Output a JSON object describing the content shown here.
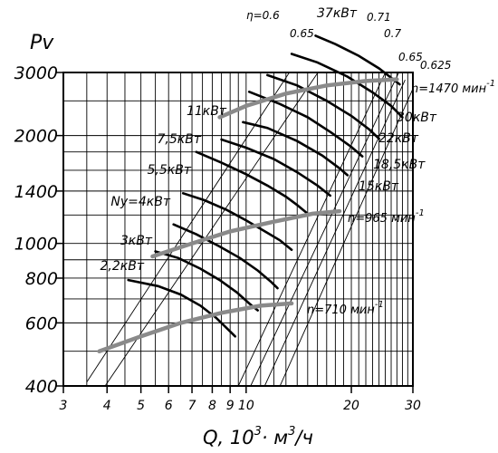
{
  "chart_data": {
    "type": "line",
    "title": "",
    "ylabel": "Pv",
    "xlabel_text": "Q, 10",
    "xlabel_exp1": "3",
    "xlabel_unit": "· м",
    "xlabel_exp2": "3",
    "xlabel_tail": "/ч",
    "x_scale": "log",
    "y_scale": "log",
    "xlim": [
      3,
      30
    ],
    "ylim": [
      400,
      3000
    ],
    "grid": true,
    "x_ticks": [
      3,
      4,
      5,
      6,
      7,
      8,
      9,
      10,
      20,
      30
    ],
    "x_grid": [
      3,
      3.5,
      4,
      4.5,
      5,
      5.5,
      6,
      6.5,
      7,
      7.5,
      8,
      8.5,
      9,
      9.5,
      10,
      11,
      12,
      13,
      14,
      15,
      16,
      17,
      18,
      19,
      20,
      21,
      22,
      23,
      24,
      25,
      26,
      27,
      28,
      29,
      30
    ],
    "y_ticks": [
      400,
      600,
      800,
      1000,
      1400,
      2000,
      3000
    ],
    "y_grid": [
      400,
      500,
      600,
      700,
      800,
      900,
      1000,
      1200,
      1400,
      1600,
      1800,
      2000,
      2500,
      3000
    ],
    "speed_curves": [
      {
        "label": "n=1470 мин",
        "label_exp": "-1",
        "points": [
          [
            8.4,
            2250
          ],
          [
            10,
            2420
          ],
          [
            13,
            2620
          ],
          [
            17,
            2760
          ],
          [
            22,
            2840
          ],
          [
            27,
            2870
          ]
        ]
      },
      {
        "label": "n=965 мин",
        "label_exp": "-1",
        "points": [
          [
            5.4,
            920
          ],
          [
            7,
            1000
          ],
          [
            9,
            1080
          ],
          [
            12,
            1150
          ],
          [
            15.5,
            1210
          ],
          [
            18.5,
            1230
          ]
        ]
      },
      {
        "label": "n=710 мин",
        "label_exp": "-1",
        "points": [
          [
            3.8,
            500
          ],
          [
            5,
            550
          ],
          [
            6.5,
            600
          ],
          [
            8.5,
            640
          ],
          [
            11,
            670
          ],
          [
            13.5,
            680
          ]
        ]
      }
    ],
    "power_curves": [
      {
        "label": "37кВт",
        "points": [
          [
            15.8,
            3800
          ],
          [
            18,
            3600
          ],
          [
            21,
            3340
          ],
          [
            24,
            3080
          ],
          [
            27.5,
            2780
          ]
        ]
      },
      {
        "label": "30кВт",
        "points": [
          [
            13.5,
            3380
          ],
          [
            16,
            3200
          ],
          [
            19.5,
            2920
          ],
          [
            23,
            2640
          ],
          [
            26,
            2420
          ],
          [
            28,
            2250
          ]
        ]
      },
      {
        "label": "22кВт",
        "points": [
          [
            11.5,
            2950
          ],
          [
            14,
            2760
          ],
          [
            17,
            2500
          ],
          [
            20,
            2270
          ],
          [
            22.5,
            2080
          ],
          [
            24,
            1960
          ]
        ]
      },
      {
        "label": "18,5кВт",
        "points": [
          [
            10.2,
            2650
          ],
          [
            12.5,
            2450
          ],
          [
            15,
            2250
          ],
          [
            17.5,
            2040
          ],
          [
            20,
            1860
          ],
          [
            21.5,
            1750
          ]
        ]
      },
      {
        "label": "15кВт",
        "points": [
          [
            9.8,
            2180
          ],
          [
            11.5,
            2100
          ],
          [
            14,
            1930
          ],
          [
            16.5,
            1760
          ],
          [
            18.5,
            1620
          ],
          [
            19.5,
            1550
          ]
        ]
      },
      {
        "label": "11кВт",
        "points": [
          [
            8.5,
            1950
          ],
          [
            10,
            1850
          ],
          [
            12,
            1720
          ],
          [
            14,
            1580
          ],
          [
            16,
            1450
          ],
          [
            17.4,
            1360
          ]
        ]
      },
      {
        "label": "7,5кВт",
        "points": [
          [
            7.2,
            1800
          ],
          [
            8.5,
            1680
          ],
          [
            10,
            1560
          ],
          [
            11.5,
            1450
          ],
          [
            13,
            1350
          ],
          [
            14,
            1280
          ],
          [
            15,
            1210
          ]
        ]
      },
      {
        "label": "5,5кВт",
        "points": [
          [
            6.6,
            1380
          ],
          [
            7.6,
            1320
          ],
          [
            8.8,
            1240
          ],
          [
            10,
            1160
          ],
          [
            11.5,
            1070
          ],
          [
            12.5,
            1020
          ],
          [
            13.5,
            960
          ]
        ]
      },
      {
        "label": "Ny=4кВт",
        "points": [
          [
            6.2,
            1130
          ],
          [
            7.2,
            1060
          ],
          [
            8.4,
            980
          ],
          [
            9.6,
            910
          ],
          [
            10.8,
            840
          ],
          [
            11.8,
            780
          ],
          [
            12.3,
            750
          ]
        ]
      },
      {
        "label": "3кВт",
        "points": [
          [
            5.5,
            950
          ],
          [
            6.4,
            910
          ],
          [
            7.4,
            850
          ],
          [
            8.4,
            790
          ],
          [
            9.4,
            730
          ],
          [
            10.2,
            680
          ],
          [
            10.8,
            650
          ]
        ]
      },
      {
        "label": "2,2кВт",
        "points": [
          [
            4.6,
            790
          ],
          [
            5.6,
            760
          ],
          [
            6.5,
            720
          ],
          [
            7.4,
            670
          ],
          [
            8.2,
            620
          ],
          [
            8.8,
            580
          ],
          [
            9.3,
            550
          ]
        ]
      }
    ],
    "efficiency_lines": [
      {
        "label": "η=0.6",
        "points": [
          [
            3.5,
            410
          ],
          [
            15.8,
            3880
          ]
        ]
      },
      {
        "label": "0.65",
        "points": [
          [
            3.95,
            400
          ],
          [
            18.5,
            3680
          ]
        ]
      },
      {
        "label": "0.71",
        "points": [
          [
            9.5,
            400
          ],
          [
            26.5,
            3380
          ]
        ]
      },
      {
        "label": "0.7",
        "points": [
          [
            10.3,
            400
          ],
          [
            28,
            3150
          ]
        ]
      },
      {
        "label": "0.65",
        "points": [
          [
            11.3,
            400
          ],
          [
            28.5,
            2860
          ]
        ]
      },
      {
        "label": "0.625",
        "points": [
          [
            12.5,
            400
          ],
          [
            30,
            2700
          ]
        ]
      }
    ]
  }
}
